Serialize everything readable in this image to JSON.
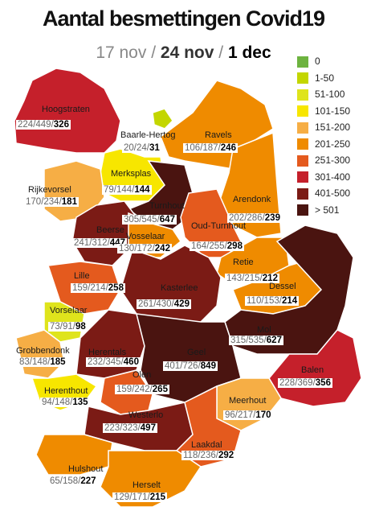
{
  "header": {
    "title": "Aantal besmettingen Covid19",
    "dates": [
      "17 nov",
      "24 nov",
      "1 dec"
    ],
    "separator": "/"
  },
  "legend": [
    {
      "label": "0",
      "color": "#6db33f"
    },
    {
      "label": "1-50",
      "color": "#c3d600"
    },
    {
      "label": "51-100",
      "color": "#dfe41c"
    },
    {
      "label": "101-150",
      "color": "#f7e600"
    },
    {
      "label": "151-200",
      "color": "#f6ae45"
    },
    {
      "label": "201-250",
      "color": "#ef8b00"
    },
    {
      "label": "251-300",
      "color": "#e45a1e"
    },
    {
      "label": "301-400",
      "color": "#c5202b"
    },
    {
      "label": "401-500",
      "color": "#7b1b15"
    },
    {
      "label": "> 501",
      "color": "#4a1410"
    }
  ],
  "municipalities": [
    {
      "name": "Hoogstraten",
      "values": [
        224,
        449,
        326
      ],
      "color": "#c5202b"
    },
    {
      "name": "Baarle-Hertog",
      "values": [
        20,
        24,
        31
      ],
      "color": "#c3d600"
    },
    {
      "name": "Ravels",
      "values": [
        106,
        187,
        246
      ],
      "color": "#ef8b00"
    },
    {
      "name": "Merksplas",
      "values": [
        79,
        144,
        144
      ],
      "color": "#f7e600"
    },
    {
      "name": "Rijkevorsel",
      "values": [
        170,
        234,
        181
      ],
      "color": "#f6ae45"
    },
    {
      "name": "Turnhout",
      "values": [
        305,
        545,
        647
      ],
      "color": "#4a1410"
    },
    {
      "name": "Arendonk",
      "values": [
        202,
        286,
        239
      ],
      "color": "#ef8b00"
    },
    {
      "name": "Oud-Turnhout",
      "values": [
        164,
        255,
        298
      ],
      "color": "#e45a1e"
    },
    {
      "name": "Beerse",
      "values": [
        241,
        312,
        447
      ],
      "color": "#7b1b15"
    },
    {
      "name": "Vosselaar",
      "values": [
        130,
        172,
        242
      ],
      "color": "#ef8b00"
    },
    {
      "name": "Retie",
      "values": [
        143,
        215,
        212
      ],
      "color": "#ef8b00"
    },
    {
      "name": "Lille",
      "values": [
        159,
        214,
        258
      ],
      "color": "#e45a1e"
    },
    {
      "name": "Dessel",
      "values": [
        110,
        153,
        214
      ],
      "color": "#ef8b00"
    },
    {
      "name": "Kasterlee",
      "values": [
        261,
        430,
        429
      ],
      "color": "#7b1b15"
    },
    {
      "name": "Vorselaar",
      "values": [
        73,
        91,
        98
      ],
      "color": "#dfe41c"
    },
    {
      "name": "Mol",
      "values": [
        315,
        535,
        627
      ],
      "color": "#4a1410"
    },
    {
      "name": "Grobbendonk",
      "values": [
        83,
        148,
        185
      ],
      "color": "#f6ae45"
    },
    {
      "name": "Herentals",
      "values": [
        232,
        345,
        460
      ],
      "color": "#7b1b15"
    },
    {
      "name": "Geel",
      "values": [
        401,
        726,
        849
      ],
      "color": "#4a1410"
    },
    {
      "name": "Balen",
      "values": [
        228,
        369,
        356
      ],
      "color": "#c5202b"
    },
    {
      "name": "Olen",
      "values": [
        159,
        242,
        265
      ],
      "color": "#e45a1e"
    },
    {
      "name": "Herenthout",
      "values": [
        94,
        148,
        135
      ],
      "color": "#f7e600"
    },
    {
      "name": "Meerhout",
      "values": [
        96,
        217,
        170
      ],
      "color": "#f6ae45"
    },
    {
      "name": "Westerlo",
      "values": [
        223,
        323,
        497
      ],
      "color": "#7b1b15"
    },
    {
      "name": "Laakdal",
      "values": [
        118,
        236,
        292
      ],
      "color": "#e45a1e"
    },
    {
      "name": "Hulshout",
      "values": [
        65,
        158,
        227
      ],
      "color": "#ef8b00"
    },
    {
      "name": "Herselt",
      "values": [
        129,
        171,
        215
      ],
      "color": "#ef8b00"
    }
  ]
}
